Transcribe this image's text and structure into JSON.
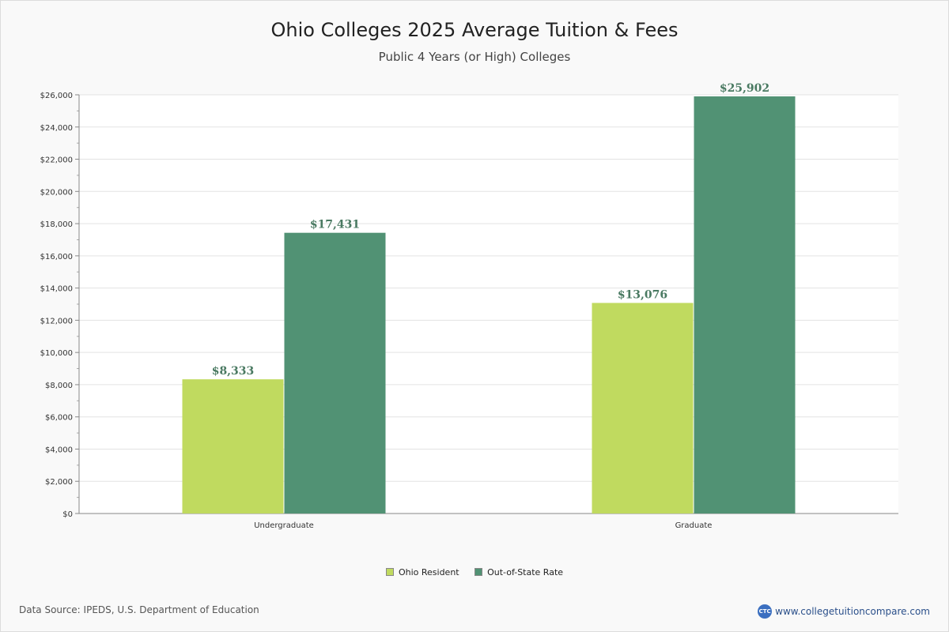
{
  "chart_data": {
    "type": "bar",
    "title": "Ohio Colleges 2025 Average Tuition & Fees",
    "subtitle": "Public 4 Years (or High)  Colleges",
    "categories": [
      "Undergraduate",
      "Graduate"
    ],
    "series": [
      {
        "name": "Ohio Resident",
        "color": "#c0da5f",
        "values": [
          8333,
          13076
        ],
        "labels": [
          "$8,333",
          "$13,076"
        ]
      },
      {
        "name": "Out-of-State Rate",
        "color": "#519274",
        "values": [
          17431,
          25902
        ],
        "labels": [
          "$17,431",
          "$25,902"
        ]
      }
    ],
    "ylim": [
      0,
      26000
    ],
    "yticks": [
      0,
      2000,
      4000,
      6000,
      8000,
      10000,
      12000,
      14000,
      16000,
      18000,
      20000,
      22000,
      24000,
      26000
    ],
    "ytick_labels": [
      "$0",
      "$2,000",
      "$4,000",
      "$6,000",
      "$8,000",
      "$10,000",
      "$12,000",
      "$14,000",
      "$16,000",
      "$18,000",
      "$20,000",
      "$22,000",
      "$24,000",
      "$26,000"
    ],
    "grid": true,
    "legend": "bottom-center",
    "label_color": "#4a7a62"
  },
  "footer": {
    "source": "Data Source: IPEDS, U.S. Department of Education",
    "site": "www.collegetuitioncompare.com",
    "logo_text": "CTC"
  }
}
